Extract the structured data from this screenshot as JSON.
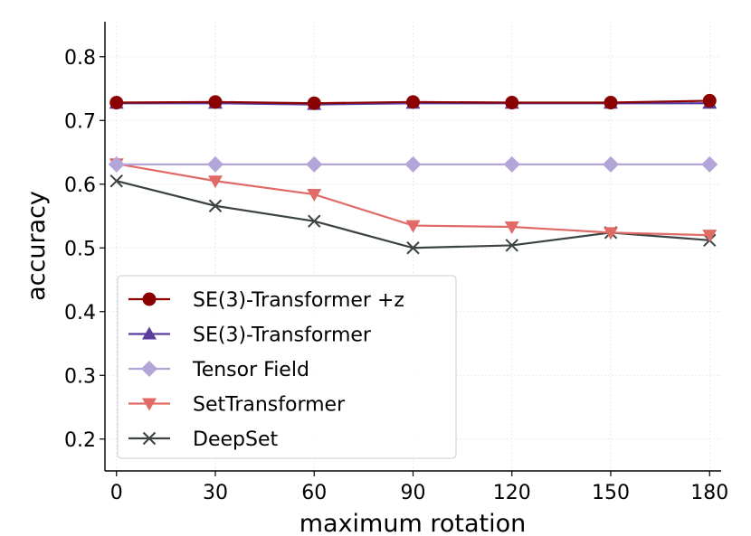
{
  "chart_data": {
    "type": "line",
    "title": "",
    "xlabel": "maximum rotation",
    "ylabel": "accuracy",
    "x": [
      0,
      30,
      60,
      90,
      120,
      150,
      180
    ],
    "x_ticks": [
      "0",
      "30",
      "60",
      "90",
      "120",
      "150",
      "180"
    ],
    "y_ticks": [
      "0.2",
      "0.3",
      "0.4",
      "0.5",
      "0.6",
      "0.7",
      "0.8"
    ],
    "xlim": [
      -3.5,
      183.5
    ],
    "ylim": [
      0.15,
      0.855
    ],
    "grid": true,
    "legend_position": "lower-left",
    "series": [
      {
        "name": "SE(3)-Transformer +z",
        "color": "#8b0000",
        "marker": "circle",
        "values": [
          0.728,
          0.729,
          0.727,
          0.729,
          0.728,
          0.728,
          0.731
        ]
      },
      {
        "name": "SE(3)-Transformer",
        "color": "#5a3d9e",
        "marker": "triangle-up",
        "values": [
          0.727,
          0.727,
          0.725,
          0.727,
          0.727,
          0.727,
          0.727
        ]
      },
      {
        "name": "Tensor Field",
        "color": "#b3a5d8",
        "marker": "diamond",
        "values": [
          0.631,
          0.631,
          0.631,
          0.631,
          0.631,
          0.631,
          0.631
        ]
      },
      {
        "name": "SetTransformer",
        "color": "#e06a65",
        "marker": "triangle-down",
        "values": [
          0.632,
          0.605,
          0.584,
          0.535,
          0.533,
          0.524,
          0.52
        ]
      },
      {
        "name": "DeepSet",
        "color": "#3b4442",
        "marker": "x",
        "values": [
          0.605,
          0.566,
          0.542,
          0.5,
          0.504,
          0.524,
          0.512
        ]
      }
    ]
  }
}
